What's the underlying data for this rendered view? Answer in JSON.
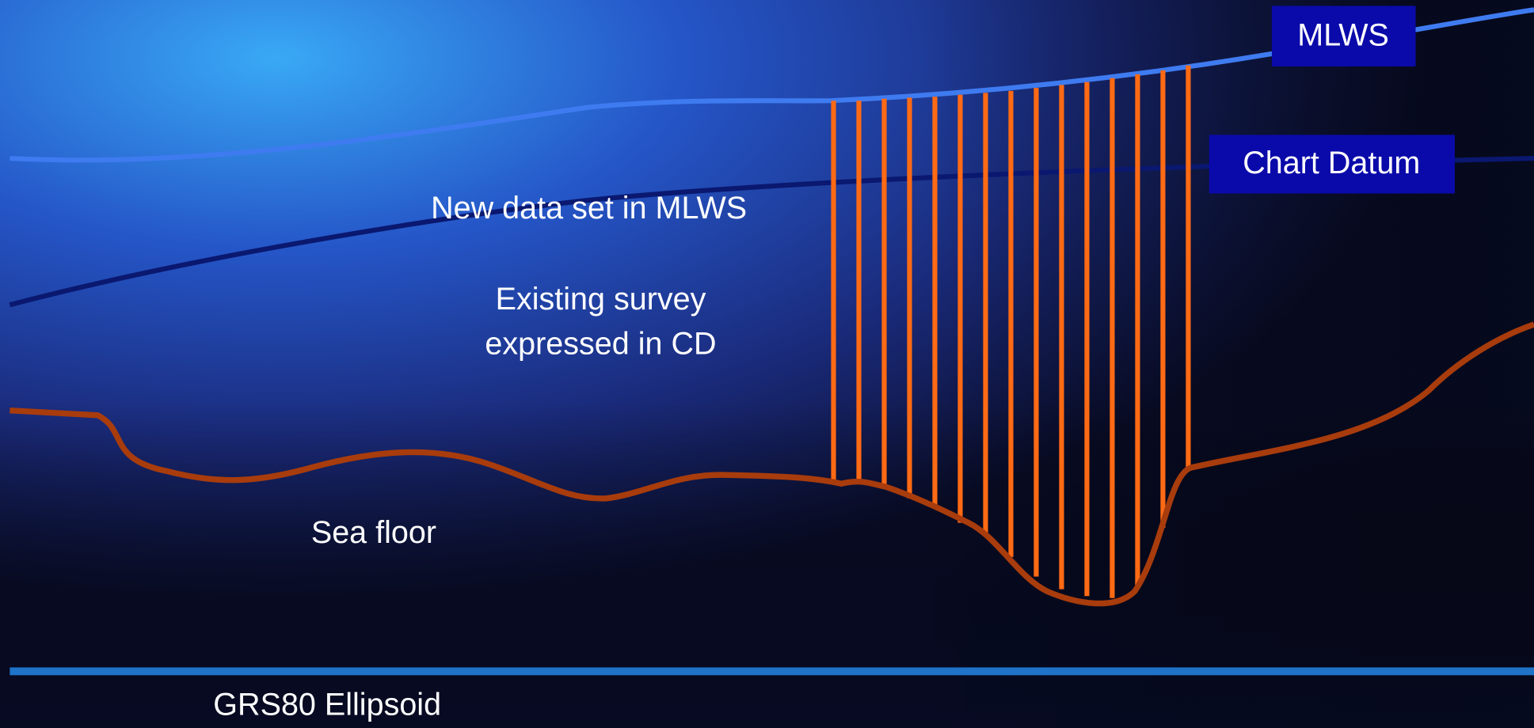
{
  "labels": {
    "mlws": "MLWS",
    "chart_datum": "Chart Datum"
  },
  "annotations": {
    "new_data": "New data set in MLWS",
    "existing_survey": [
      "Existing survey",
      "expressed in CD"
    ],
    "sea_floor": "Sea floor",
    "ellipsoid": "GRS80 Ellipsoid"
  }
}
